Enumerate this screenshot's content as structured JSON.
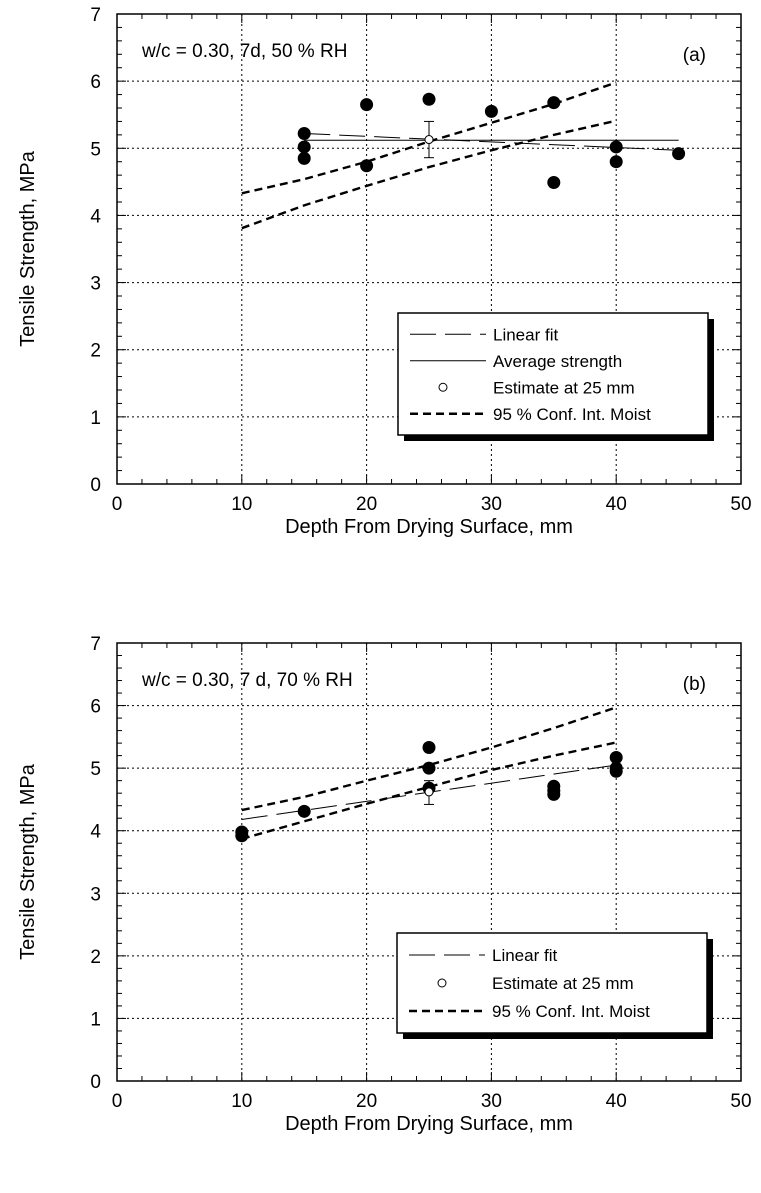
{
  "chart_data": [
    {
      "type": "scatter",
      "panel_label": "(a)",
      "annotation": "w/c = 0.30, 7d, 50 % RH",
      "xlabel": "Depth From Drying Surface, mm",
      "ylabel": "Tensile Strength, MPa",
      "xlim": [
        0,
        50
      ],
      "ylim": [
        0,
        7
      ],
      "x_ticks": [
        "0",
        "10",
        "20",
        "30",
        "40",
        "50"
      ],
      "y_ticks": [
        "0",
        "1",
        "2",
        "3",
        "4",
        "5",
        "6",
        "7"
      ],
      "grid": true,
      "legend_position": "bottom-right",
      "legend": [
        {
          "label": "Linear fit",
          "style": "long-dash"
        },
        {
          "label": "Average strength",
          "style": "solid"
        },
        {
          "label": "Estimate at 25 mm",
          "style": "open-circle"
        },
        {
          "label": "95 % Conf. Int. Moist",
          "style": "short-dash"
        }
      ],
      "points": [
        {
          "x": 15,
          "y": 5.22
        },
        {
          "x": 15,
          "y": 5.02
        },
        {
          "x": 15,
          "y": 4.85
        },
        {
          "x": 20,
          "y": 5.65
        },
        {
          "x": 20,
          "y": 4.74
        },
        {
          "x": 25,
          "y": 5.73
        },
        {
          "x": 30,
          "y": 5.55
        },
        {
          "x": 35,
          "y": 5.68
        },
        {
          "x": 35,
          "y": 4.49
        },
        {
          "x": 40,
          "y": 5.02
        },
        {
          "x": 40,
          "y": 4.8
        },
        {
          "x": 45,
          "y": 4.92
        }
      ],
      "linear_fit": {
        "x": [
          15,
          45
        ],
        "y": [
          5.22,
          4.97
        ]
      },
      "average_strength": {
        "x": [
          15,
          45
        ],
        "y": [
          5.12,
          5.12
        ]
      },
      "estimate": {
        "x": 25,
        "y": 5.13,
        "error_low": 4.86,
        "error_high": 5.4
      },
      "ci_upper": {
        "x": [
          10,
          15,
          20,
          25,
          30,
          35,
          40
        ],
        "y": [
          4.33,
          4.54,
          4.8,
          5.1,
          5.38,
          5.66,
          5.98
        ]
      },
      "ci_lower": {
        "x": [
          10,
          15,
          20,
          25,
          30,
          35,
          40
        ],
        "y": [
          3.81,
          4.15,
          4.44,
          4.72,
          4.97,
          5.2,
          5.41
        ]
      }
    },
    {
      "type": "scatter",
      "panel_label": "(b)",
      "annotation": "w/c = 0.30, 7 d, 70 % RH",
      "xlabel": "Depth From Drying Surface, mm",
      "ylabel": "Tensile Strength, MPa",
      "xlim": [
        0,
        50
      ],
      "ylim": [
        0,
        7
      ],
      "x_ticks": [
        "0",
        "10",
        "20",
        "30",
        "40",
        "50"
      ],
      "y_ticks": [
        "0",
        "1",
        "2",
        "3",
        "4",
        "5",
        "6",
        "7"
      ],
      "grid": true,
      "legend_position": "bottom-right",
      "legend": [
        {
          "label": "Linear fit",
          "style": "long-dash"
        },
        {
          "label": "Estimate at 25 mm",
          "style": "open-circle"
        },
        {
          "label": "95 % Conf. Int. Moist",
          "style": "short-dash"
        }
      ],
      "points": [
        {
          "x": 10,
          "y": 3.98
        },
        {
          "x": 10,
          "y": 3.92
        },
        {
          "x": 15,
          "y": 4.31
        },
        {
          "x": 25,
          "y": 5.33
        },
        {
          "x": 25,
          "y": 5.0
        },
        {
          "x": 25,
          "y": 4.68
        },
        {
          "x": 35,
          "y": 4.71
        },
        {
          "x": 35,
          "y": 4.64
        },
        {
          "x": 35,
          "y": 4.58
        },
        {
          "x": 40,
          "y": 5.17
        },
        {
          "x": 40,
          "y": 5.0
        },
        {
          "x": 40,
          "y": 4.95
        }
      ],
      "linear_fit": {
        "x": [
          10,
          40
        ],
        "y": [
          4.18,
          5.05
        ]
      },
      "estimate": {
        "x": 25,
        "y": 4.62,
        "error_low": 4.42,
        "error_high": 4.8
      },
      "ci_upper": {
        "x": [
          10,
          15,
          20,
          25,
          30,
          35,
          40
        ],
        "y": [
          4.33,
          4.54,
          4.8,
          5.05,
          5.33,
          5.64,
          5.97
        ]
      },
      "ci_lower": {
        "x": [
          10,
          15,
          20,
          25,
          30,
          35,
          40
        ],
        "y": [
          3.87,
          4.15,
          4.43,
          4.7,
          4.97,
          5.2,
          5.41
        ]
      }
    }
  ]
}
